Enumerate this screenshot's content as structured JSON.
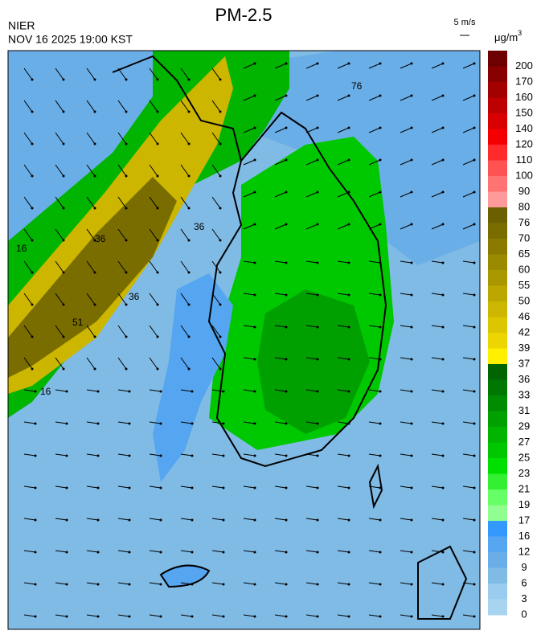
{
  "header": {
    "title": "PM-2.5",
    "source": "NIER",
    "timestamp": "NOV 16 2025 19:00 KST",
    "wind_reference": "5 m/s",
    "unit": "μg/m",
    "unit_power": "3"
  },
  "legend": {
    "items": [
      {
        "value": 200,
        "color": "#6d0000"
      },
      {
        "value": 170,
        "color": "#880000"
      },
      {
        "value": 160,
        "color": "#a30000"
      },
      {
        "value": 150,
        "color": "#bf0000"
      },
      {
        "value": 140,
        "color": "#d90000"
      },
      {
        "value": 120,
        "color": "#f50000"
      },
      {
        "value": 110,
        "color": "#ff2a2a"
      },
      {
        "value": 100,
        "color": "#ff5252"
      },
      {
        "value": 90,
        "color": "#ff7373"
      },
      {
        "value": 80,
        "color": "#ff9a9a"
      },
      {
        "value": 76,
        "color": "#6b5f00"
      },
      {
        "value": 70,
        "color": "#7a6d00"
      },
      {
        "value": 65,
        "color": "#8a7b00"
      },
      {
        "value": 60,
        "color": "#9a8a00"
      },
      {
        "value": 55,
        "color": "#aa9800"
      },
      {
        "value": 50,
        "color": "#bba700"
      },
      {
        "value": 46,
        "color": "#ccb600"
      },
      {
        "value": 42,
        "color": "#dcc600"
      },
      {
        "value": 39,
        "color": "#ecd500"
      },
      {
        "value": 37,
        "color": "#fff000"
      },
      {
        "value": 36,
        "color": "#006400"
      },
      {
        "value": 33,
        "color": "#007800"
      },
      {
        "value": 31,
        "color": "#008c00"
      },
      {
        "value": 29,
        "color": "#00a000"
      },
      {
        "value": 27,
        "color": "#00b400"
      },
      {
        "value": 25,
        "color": "#00c800"
      },
      {
        "value": 23,
        "color": "#00e000"
      },
      {
        "value": 21,
        "color": "#33f033"
      },
      {
        "value": 19,
        "color": "#66ff66"
      },
      {
        "value": 17,
        "color": "#90ff90"
      },
      {
        "value": 16,
        "color": "#3399ff"
      },
      {
        "value": 12,
        "color": "#55a5f0"
      },
      {
        "value": 9,
        "color": "#6aaee8"
      },
      {
        "value": 6,
        "color": "#80bbe5"
      },
      {
        "value": 3,
        "color": "#99ccee"
      },
      {
        "value": 0,
        "color": "#a8d4f0"
      }
    ]
  },
  "contour_labels": [
    "16",
    "36",
    "51",
    "36",
    "16",
    "36",
    "76"
  ]
}
